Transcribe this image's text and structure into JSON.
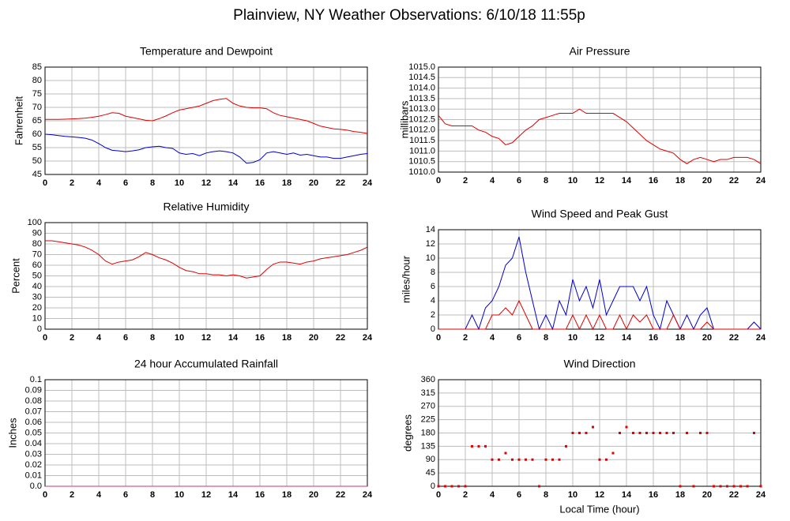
{
  "title": "Plainview, NY Weather Observations: 6/10/18 11:55p",
  "chart_data": [
    {
      "type": "line",
      "title": "Temperature and Dewpoint",
      "ylabel": "Fahrenheit",
      "x": [
        0,
        0.5,
        1,
        1.5,
        2,
        2.5,
        3,
        3.5,
        4,
        4.5,
        5,
        5.5,
        6,
        6.5,
        7,
        7.5,
        8,
        8.5,
        9,
        9.5,
        10,
        10.5,
        11,
        11.5,
        12,
        12.5,
        13,
        13.5,
        14,
        14.5,
        15,
        15.5,
        16,
        16.5,
        17,
        17.5,
        18,
        18.5,
        19,
        19.5,
        20,
        20.5,
        21,
        21.5,
        22,
        22.5,
        23,
        23.5,
        24
      ],
      "series": [
        {
          "color": "#e00000",
          "values": [
            65.5,
            65.5,
            65.5,
            65.6,
            65.7,
            65.8,
            66,
            66.3,
            66.7,
            67.3,
            68,
            67.8,
            66.7,
            66.2,
            65.7,
            65.2,
            65,
            65.8,
            66.8,
            68,
            69,
            69.5,
            70,
            70.5,
            71.5,
            72.5,
            73,
            73.3,
            71.5,
            70.5,
            70,
            69.8,
            69.8,
            69.5,
            68,
            67,
            66.5,
            66,
            65.5,
            65,
            64,
            63,
            62.5,
            62,
            61.8,
            61.5,
            61,
            60.7,
            60.3
          ]
        },
        {
          "color": "#0000d0",
          "values": [
            60,
            59.8,
            59.5,
            59.2,
            59,
            58.8,
            58.5,
            57.8,
            56.5,
            55,
            54,
            53.8,
            53.5,
            53.8,
            54.2,
            55,
            55.3,
            55.5,
            55,
            54.7,
            53,
            52.5,
            52.8,
            52,
            53,
            53.5,
            53.8,
            53.5,
            53,
            51.5,
            49.2,
            49.5,
            50.5,
            53,
            53.5,
            53,
            52.5,
            53,
            52.2,
            52.5,
            52,
            51.5,
            51.5,
            51,
            51,
            51.5,
            52,
            52.5,
            52.8
          ]
        }
      ],
      "xlim": [
        0,
        24
      ],
      "xticks": [
        0,
        2,
        4,
        6,
        8,
        10,
        12,
        14,
        16,
        18,
        20,
        22,
        24
      ],
      "ylim": [
        45,
        85
      ],
      "yticks": [
        45,
        50,
        55,
        60,
        65,
        70,
        75,
        80,
        85
      ],
      "grid": true
    },
    {
      "type": "line",
      "title": "Air Pressure",
      "ylabel": "millibars",
      "x": [
        0,
        0.5,
        1,
        1.5,
        2,
        2.5,
        3,
        3.5,
        4,
        4.5,
        5,
        5.5,
        6,
        6.5,
        7,
        7.5,
        8,
        8.5,
        9,
        9.5,
        10,
        10.5,
        11,
        11.5,
        12,
        12.5,
        13,
        13.5,
        14,
        14.5,
        15,
        15.5,
        16,
        16.5,
        17,
        17.5,
        18,
        18.5,
        19,
        19.5,
        20,
        20.5,
        21,
        21.5,
        22,
        22.5,
        23,
        23.5,
        24
      ],
      "series": [
        {
          "color": "#e00000",
          "values": [
            1012.7,
            1012.3,
            1012.2,
            1012.2,
            1012.2,
            1012.2,
            1012,
            1011.9,
            1011.7,
            1011.6,
            1011.3,
            1011.4,
            1011.7,
            1012,
            1012.2,
            1012.5,
            1012.6,
            1012.7,
            1012.8,
            1012.8,
            1012.8,
            1013,
            1012.8,
            1012.8,
            1012.8,
            1012.8,
            1012.8,
            1012.6,
            1012.4,
            1012.1,
            1011.8,
            1011.5,
            1011.3,
            1011.1,
            1011,
            1010.9,
            1010.6,
            1010.4,
            1010.6,
            1010.7,
            1010.6,
            1010.5,
            1010.6,
            1010.6,
            1010.7,
            1010.7,
            1010.7,
            1010.6,
            1010.4
          ]
        }
      ],
      "xlim": [
        0,
        24
      ],
      "xticks": [
        0,
        2,
        4,
        6,
        8,
        10,
        12,
        14,
        16,
        18,
        20,
        22,
        24
      ],
      "ylim": [
        1010,
        1015
      ],
      "yticks": [
        {
          "value": 1010,
          "label": "1010.0"
        },
        1010.5,
        {
          "value": 1011,
          "label": "1011.0"
        },
        1011.5,
        {
          "value": 1012,
          "label": "1012.0"
        },
        1012.5,
        {
          "value": 1013,
          "label": "1013.0"
        },
        1013.5,
        {
          "value": 1014,
          "label": "1014.0"
        },
        1014.5,
        {
          "value": 1015,
          "label": "1015.0"
        }
      ],
      "grid": true
    },
    {
      "type": "line",
      "title": "Relative Humidity",
      "ylabel": "Percent",
      "x": [
        0,
        0.5,
        1,
        1.5,
        2,
        2.5,
        3,
        3.5,
        4,
        4.5,
        5,
        5.5,
        6,
        6.5,
        7,
        7.5,
        8,
        8.5,
        9,
        9.5,
        10,
        10.5,
        11,
        11.5,
        12,
        12.5,
        13,
        13.5,
        14,
        14.5,
        15,
        15.5,
        16,
        16.5,
        17,
        17.5,
        18,
        18.5,
        19,
        19.5,
        20,
        20.5,
        21,
        21.5,
        22,
        22.5,
        23,
        23.5,
        24
      ],
      "series": [
        {
          "color": "#e00000",
          "values": [
            83,
            83,
            82,
            81,
            80,
            79,
            77,
            74,
            70,
            64,
            61,
            63,
            64,
            65,
            68,
            72,
            70,
            67,
            65,
            62,
            58,
            55,
            54,
            52,
            52,
            51,
            51,
            50,
            51,
            50,
            48,
            49,
            50,
            56,
            61,
            63,
            63,
            62,
            61,
            63,
            64,
            66,
            67,
            68,
            69,
            70,
            72,
            74,
            77
          ]
        }
      ],
      "xlim": [
        0,
        24
      ],
      "xticks": [
        0,
        2,
        4,
        6,
        8,
        10,
        12,
        14,
        16,
        18,
        20,
        22,
        24
      ],
      "ylim": [
        0,
        100
      ],
      "yticks": [
        0,
        10,
        20,
        30,
        40,
        50,
        60,
        70,
        80,
        90,
        100
      ],
      "grid": true
    },
    {
      "type": "line",
      "title": "Wind Speed and Peak Gust",
      "ylabel": "miles/hour",
      "x": [
        0,
        0.5,
        1,
        1.5,
        2,
        2.5,
        3,
        3.5,
        4,
        4.5,
        5,
        5.5,
        6,
        6.5,
        7,
        7.5,
        8,
        8.5,
        9,
        9.5,
        10,
        10.5,
        11,
        11.5,
        12,
        12.5,
        13,
        13.5,
        14,
        14.5,
        15,
        15.5,
        16,
        16.5,
        17,
        17.5,
        18,
        18.5,
        19,
        19.5,
        20,
        20.5,
        21,
        21.5,
        22,
        22.5,
        23,
        23.5,
        24
      ],
      "series": [
        {
          "color": "#0000d0",
          "values": [
            0,
            0,
            0,
            0,
            0,
            2,
            0,
            3,
            4,
            6,
            9,
            10,
            13,
            8,
            4,
            0,
            2,
            0,
            4,
            2,
            7,
            4,
            6,
            3,
            7,
            2,
            4,
            6,
            6,
            6,
            4,
            6,
            2,
            0,
            4,
            2,
            0,
            2,
            0,
            2,
            3,
            0,
            0,
            0,
            0,
            0,
            0,
            1,
            0
          ]
        },
        {
          "color": "#e00000",
          "values": [
            0,
            0,
            0,
            0,
            0,
            0,
            0,
            0,
            2,
            2,
            3,
            2,
            4,
            2,
            0,
            0,
            0,
            0,
            0,
            0,
            2,
            0,
            2,
            0,
            2,
            0,
            0,
            2,
            0,
            2,
            1,
            2,
            0,
            0,
            0,
            2,
            0,
            0,
            0,
            0,
            1,
            0,
            0,
            0,
            0,
            0,
            0,
            0,
            0
          ]
        }
      ],
      "xlim": [
        0,
        24
      ],
      "xticks": [
        0,
        2,
        4,
        6,
        8,
        10,
        12,
        14,
        16,
        18,
        20,
        22,
        24
      ],
      "ylim": [
        0,
        14
      ],
      "yticks": [
        0,
        2,
        4,
        6,
        8,
        10,
        12,
        14
      ],
      "grid": true
    },
    {
      "type": "line",
      "title": "24 hour Accumulated Rainfall",
      "ylabel": "Inches",
      "x": [
        0,
        24
      ],
      "series": [
        {
          "color": "#cc3377",
          "values": [
            0,
            0
          ]
        }
      ],
      "xlim": [
        0,
        24
      ],
      "xticks": [
        0,
        2,
        4,
        6,
        8,
        10,
        12,
        14,
        16,
        18,
        20,
        22,
        24
      ],
      "ylim": [
        0,
        0.1
      ],
      "yticks": [
        {
          "value": 0,
          "label": "0.0"
        },
        0.01,
        0.02,
        0.03,
        0.04,
        0.05,
        0.06,
        0.07,
        0.08,
        0.09,
        0.1
      ],
      "grid": true
    },
    {
      "type": "scatter",
      "title": "Wind Direction",
      "ylabel": "degrees",
      "xlabel": "Local Time (hour)",
      "x": [
        0,
        0.5,
        1,
        1.5,
        2,
        2.5,
        3,
        3.5,
        4,
        4.5,
        5,
        5.5,
        6,
        6.5,
        7,
        7.5,
        8,
        8.5,
        9,
        9.5,
        10,
        10.5,
        11,
        11.5,
        12,
        12.5,
        13,
        13.5,
        14,
        14.5,
        15,
        15.5,
        16,
        16.5,
        17,
        17.5,
        18,
        18.5,
        19,
        19.5,
        20,
        20.5,
        21,
        21.5,
        22,
        22.5,
        23,
        23.5,
        24
      ],
      "series": [
        {
          "color": "#e00000",
          "values": [
            0,
            0,
            0,
            0,
            0,
            135,
            135,
            135,
            90,
            90,
            112,
            90,
            90,
            90,
            90,
            0,
            90,
            90,
            90,
            135,
            180,
            180,
            180,
            200,
            90,
            90,
            112,
            180,
            200,
            180,
            180,
            180,
            180,
            180,
            180,
            180,
            0,
            180,
            0,
            180,
            180,
            0,
            0,
            0,
            0,
            0,
            0,
            180,
            0
          ]
        }
      ],
      "xlim": [
        0,
        24
      ],
      "xticks": [
        0,
        2,
        4,
        6,
        8,
        10,
        12,
        14,
        16,
        18,
        20,
        22,
        24
      ],
      "ylim": [
        0,
        360
      ],
      "yticks": [
        0,
        45,
        90,
        135,
        180,
        225,
        270,
        315,
        360
      ],
      "grid": true
    }
  ]
}
